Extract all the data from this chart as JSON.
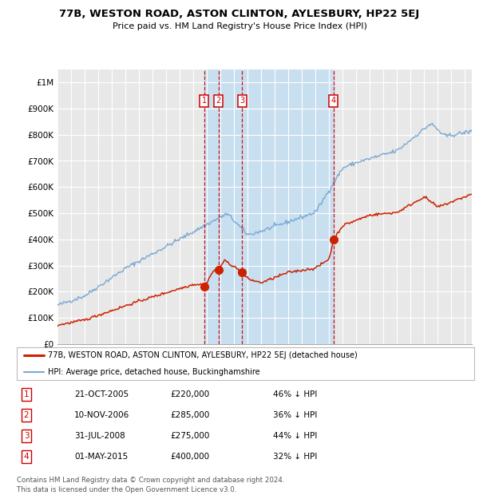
{
  "title": "77B, WESTON ROAD, ASTON CLINTON, AYLESBURY, HP22 5EJ",
  "subtitle": "Price paid vs. HM Land Registry's House Price Index (HPI)",
  "ylim": [
    0,
    1050000
  ],
  "yticks": [
    0,
    100000,
    200000,
    300000,
    400000,
    500000,
    600000,
    700000,
    800000,
    900000,
    1000000
  ],
  "ytick_labels": [
    "£0",
    "£100K",
    "£200K",
    "£300K",
    "£400K",
    "£500K",
    "£600K",
    "£700K",
    "£800K",
    "£900K",
    "£1M"
  ],
  "hpi_color": "#7aa8d2",
  "price_color": "#cc2200",
  "background_color": "#ffffff",
  "plot_bg_color": "#e8e8e8",
  "shade_color": "#c8dff0",
  "grid_color": "#ffffff",
  "sale_dates": [
    2005.81,
    2006.86,
    2008.58,
    2015.33
  ],
  "sale_prices": [
    220000,
    285000,
    275000,
    400000
  ],
  "sale_labels": [
    "1",
    "2",
    "3",
    "4"
  ],
  "legend_line1": "77B, WESTON ROAD, ASTON CLINTON, AYLESBURY, HP22 5EJ (detached house)",
  "legend_line2": "HPI: Average price, detached house, Buckinghamshire",
  "table_rows": [
    [
      "1",
      "21-OCT-2005",
      "£220,000",
      "46% ↓ HPI"
    ],
    [
      "2",
      "10-NOV-2006",
      "£285,000",
      "36% ↓ HPI"
    ],
    [
      "3",
      "31-JUL-2008",
      "£275,000",
      "44% ↓ HPI"
    ],
    [
      "4",
      "01-MAY-2015",
      "£400,000",
      "32% ↓ HPI"
    ]
  ],
  "footer": "Contains HM Land Registry data © Crown copyright and database right 2024.\nThis data is licensed under the Open Government Licence v3.0.",
  "xmin": 1995,
  "xmax": 2025.5
}
